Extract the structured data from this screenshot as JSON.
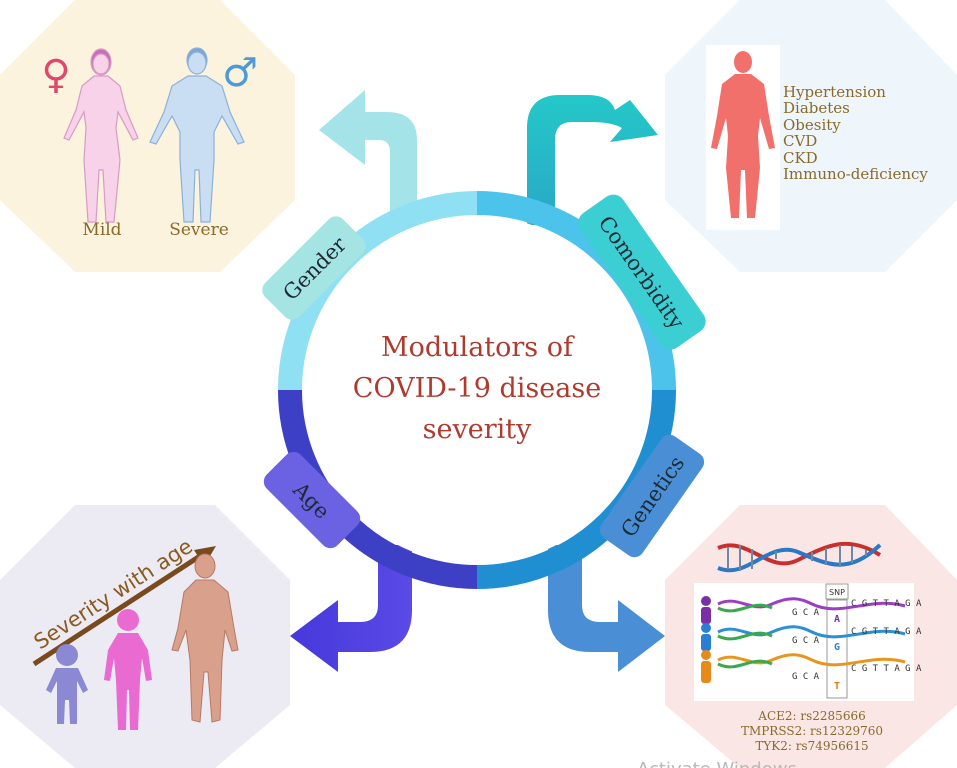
{
  "title": {
    "line1": "Modulators of",
    "line2": "COVID-19 disease",
    "line3": "severity"
  },
  "labels": {
    "gender": "Gender",
    "comorbidity": "Comorbidity",
    "age": "Age",
    "genetics": "Genetics"
  },
  "gender_panel": {
    "mild": "Mild",
    "severe": "Severe",
    "female_symbol": "♀",
    "male_symbol": "♂"
  },
  "comorbidity_panel": {
    "items": [
      "Hypertension",
      "Diabetes",
      "Obesity",
      "CVD",
      "CKD",
      "Immuno-deficiency"
    ]
  },
  "age_panel": {
    "arrow_label": "Severity with age"
  },
  "genetics_panel": {
    "snp_tag": "SNP",
    "sequences": [
      {
        "pre": "G C A",
        "snp": "A",
        "post": "C G T T A G A",
        "snp_color": "#7b2fa6"
      },
      {
        "pre": "G C A",
        "snp": "G",
        "post": "C G T T A G A",
        "snp_color": "#2a7fd4"
      },
      {
        "pre": "G C A",
        "snp": "T",
        "post": "C G T T A G A",
        "snp_color": "#e07a12"
      }
    ],
    "variants": [
      "ACE2: rs2285666",
      "TMPRSS2: rs12329760",
      "TYK2: rs74956615"
    ]
  },
  "watermark": "Activate Windows",
  "colors": {
    "title": "#b03a2e",
    "panel_text": "#8a6a2a",
    "gender": "#a9e6ea",
    "comorbidity": "#3cccd0",
    "age": "#5b4fe0",
    "genetics": "#4a8fd6"
  }
}
